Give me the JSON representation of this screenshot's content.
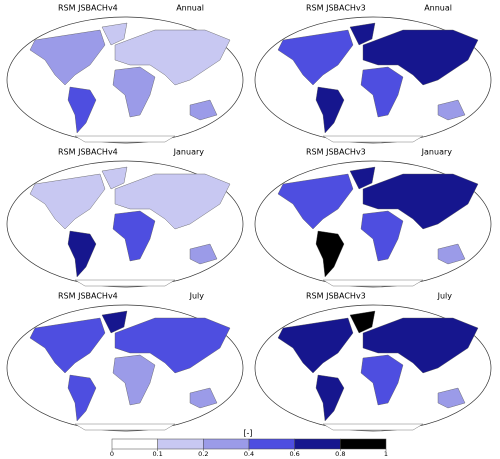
{
  "panels": [
    {
      "model": "RSM JSBACHv4",
      "period": "Annual"
    },
    {
      "model": "RSM JSBACHv3",
      "period": "Annual"
    },
    {
      "model": "RSM JSBACHv4",
      "period": "January"
    },
    {
      "model": "RSM JSBACHv3",
      "period": "January"
    },
    {
      "model": "RSM JSBACHv4",
      "period": "July"
    },
    {
      "model": "RSM JSBACHv3",
      "period": "July"
    }
  ],
  "colorbar": {
    "label": "[-]",
    "ticks": [
      0,
      0.1,
      0.2,
      0.4,
      0.6,
      0.8,
      1
    ],
    "colors": [
      "#ffffff",
      "#c8c8f2",
      "#9b9be8",
      "#4e4ee0",
      "#16168e",
      "#000000"
    ]
  }
}
